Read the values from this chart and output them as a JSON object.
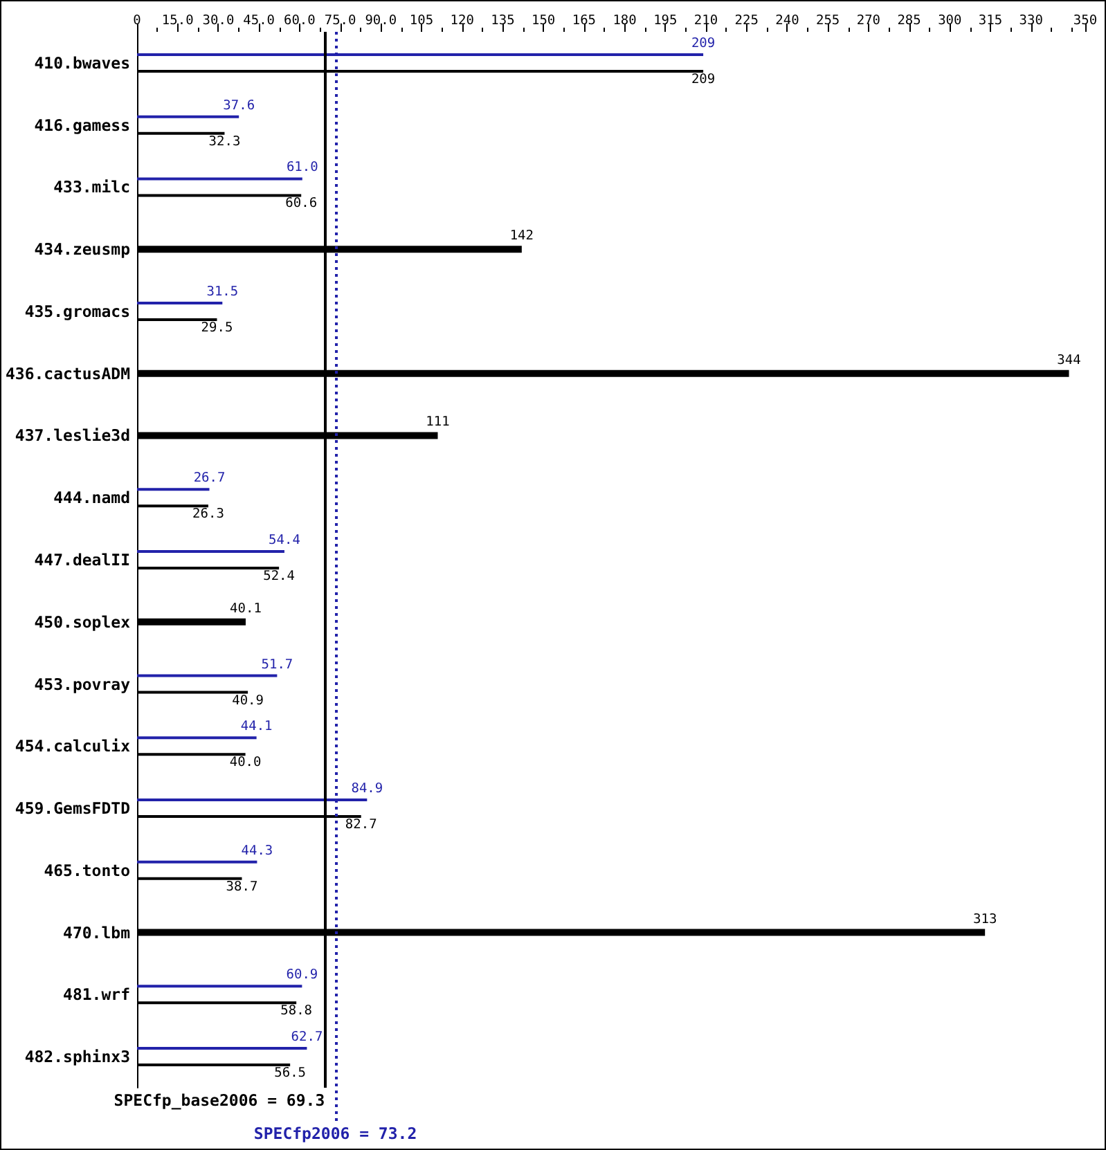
{
  "chart_data": {
    "type": "bar",
    "orientation": "horizontal",
    "categories": [
      "410.bwaves",
      "416.gamess",
      "433.milc",
      "434.zeusmp",
      "435.gromacs",
      "436.cactusADM",
      "437.leslie3d",
      "444.namd",
      "447.dealII",
      "450.soplex",
      "453.povray",
      "454.calculix",
      "459.GemsFDTD",
      "465.tonto",
      "470.lbm",
      "481.wrf",
      "482.sphinx3"
    ],
    "series": [
      {
        "color": "#2222aa",
        "values": [
          209,
          37.6,
          61.0,
          null,
          31.5,
          null,
          null,
          26.7,
          54.4,
          null,
          51.7,
          44.1,
          84.9,
          44.3,
          null,
          60.9,
          62.7
        ],
        "value_labels": [
          "209",
          "37.6",
          "61.0",
          null,
          "31.5",
          null,
          null,
          "26.7",
          "54.4",
          null,
          "51.7",
          "44.1",
          "84.9",
          "44.3",
          null,
          "60.9",
          "62.7"
        ]
      },
      {
        "color": "#000000",
        "values": [
          209,
          32.3,
          60.6,
          142,
          29.5,
          344,
          111,
          26.3,
          52.4,
          40.1,
          40.9,
          40.0,
          82.7,
          38.7,
          313,
          58.8,
          56.5
        ],
        "value_labels": [
          "209",
          "32.3",
          "60.6",
          "142",
          "29.5",
          "344",
          "111",
          "26.3",
          "52.4",
          "40.1",
          "40.9",
          "40.0",
          "82.7",
          "38.7",
          "313",
          "58.8",
          "56.5"
        ]
      }
    ],
    "xlim": [
      0,
      350
    ],
    "xticks": [
      0,
      {
        "value": 7.5,
        "label": null
      },
      {
        "value": 15,
        "label": "15.0"
      },
      {
        "value": 22.5,
        "label": null
      },
      {
        "value": 30,
        "label": "30.0"
      },
      {
        "value": 37.5,
        "label": null
      },
      {
        "value": 45,
        "label": "45.0"
      },
      {
        "value": 52.5,
        "label": null
      },
      {
        "value": 60,
        "label": "60.0"
      },
      {
        "value": 67.5,
        "label": null
      },
      {
        "value": 75,
        "label": "75.0"
      },
      {
        "value": 82.5,
        "label": null
      },
      {
        "value": 90,
        "label": "90.0"
      },
      {
        "value": 97.5,
        "label": null
      },
      105,
      {
        "value": 112.5,
        "label": null
      },
      120,
      {
        "value": 127.5,
        "label": null
      },
      135,
      {
        "value": 142.5,
        "label": null
      },
      150,
      {
        "value": 157.5,
        "label": null
      },
      165,
      {
        "value": 172.5,
        "label": null
      },
      180,
      {
        "value": 187.5,
        "label": null
      },
      195,
      {
        "value": 202.5,
        "label": null
      },
      210,
      {
        "value": 217.5,
        "label": null
      },
      225,
      {
        "value": 232.5,
        "label": null
      },
      240,
      {
        "value": 247.5,
        "label": null
      },
      255,
      {
        "value": 262.5,
        "label": null
      },
      270,
      {
        "value": 277.5,
        "label": null
      },
      285,
      {
        "value": 292.5,
        "label": null
      },
      300,
      {
        "value": 307.5,
        "label": null
      },
      315,
      {
        "value": 322.5,
        "label": null
      },
      330,
      {
        "value": 337.5,
        "label": null
      },
      {
        "value": 345,
        "label": null
      },
      350
    ],
    "ref_lines": [
      {
        "axis": "x",
        "value": 69.3,
        "label": "SPECfp_base2006 = 69.3",
        "color": "#000000",
        "line_style": "solid"
      },
      {
        "axis": "x",
        "value": 73.2,
        "label": "SPECfp2006 = 73.2",
        "color": "#2222aa",
        "line_style": "dotted"
      }
    ]
  }
}
